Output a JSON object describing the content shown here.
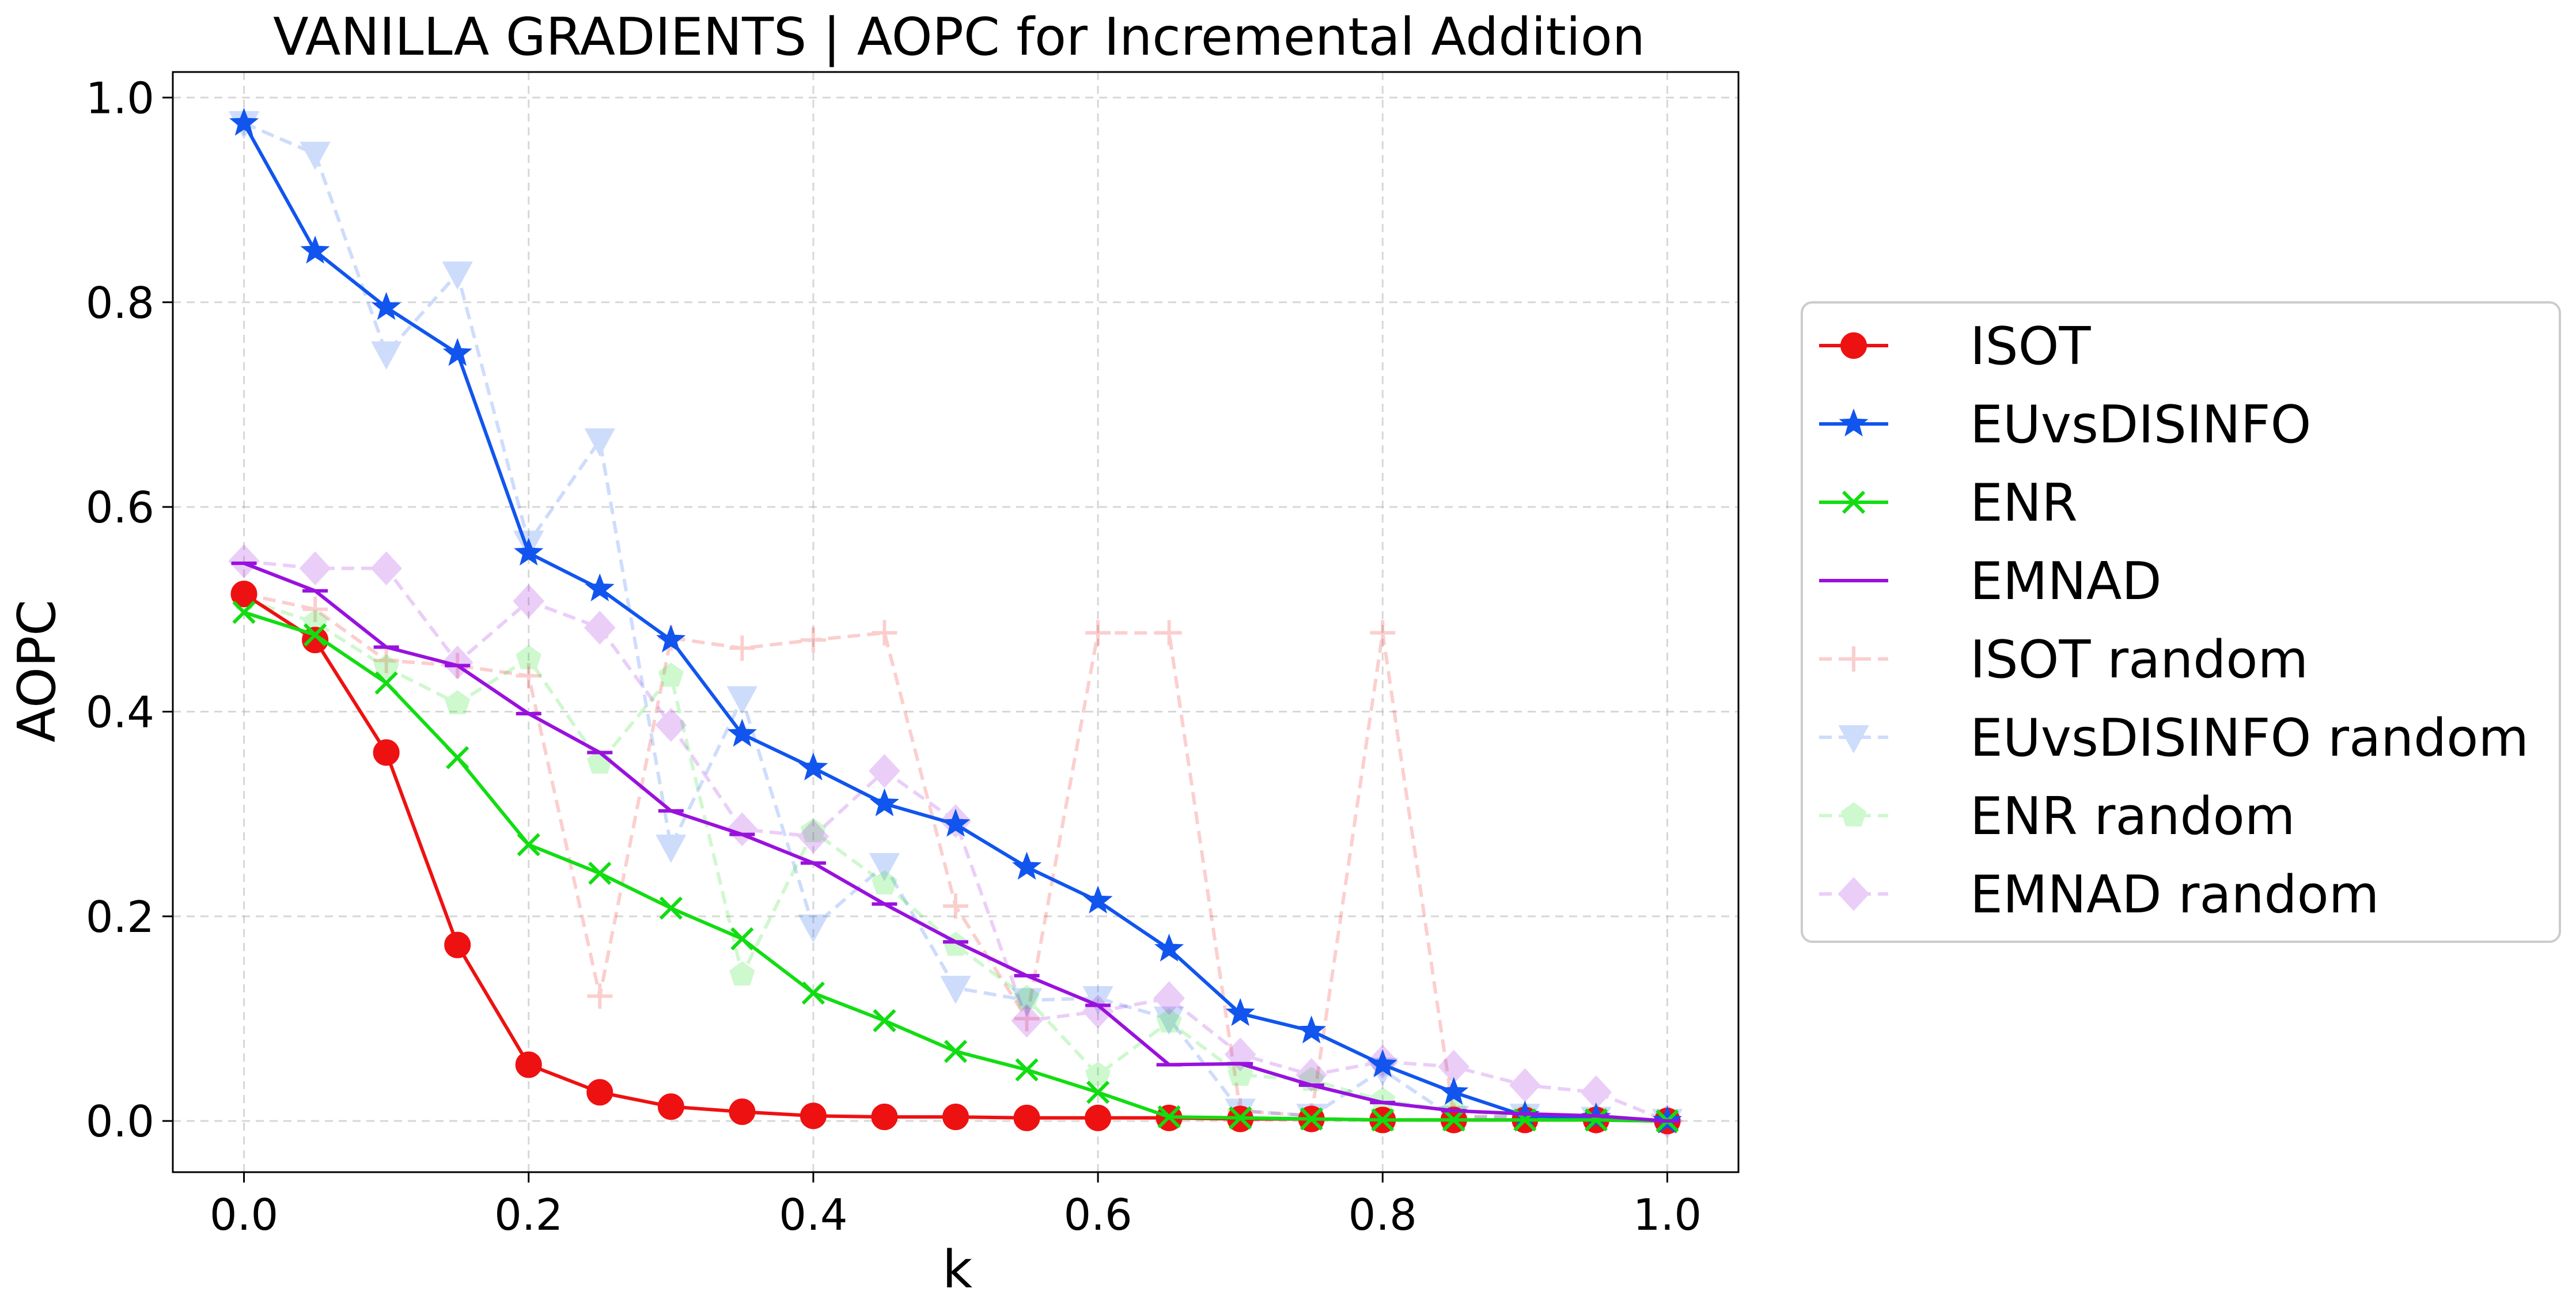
{
  "chart_data": {
    "type": "line",
    "title": "VANILLA GRADIENTS | AOPC for Incremental Addition",
    "xlabel": "k",
    "ylabel": "AOPC",
    "xlim": [
      -0.05,
      1.05
    ],
    "ylim": [
      -0.05,
      1.025
    ],
    "xticks": [
      "0.0",
      "0.2",
      "0.4",
      "0.6",
      "0.8",
      "1.0"
    ],
    "yticks": [
      "0.0",
      "0.2",
      "0.4",
      "0.6",
      "0.8",
      "1.0"
    ],
    "grid": true,
    "legend_position": "right, outside plot",
    "x": [
      0.0,
      0.05,
      0.1,
      0.15,
      0.2,
      0.25,
      0.3,
      0.35,
      0.4,
      0.45,
      0.5,
      0.55,
      0.6,
      0.65,
      0.7,
      0.75,
      0.8,
      0.85,
      0.9,
      0.95,
      1.0
    ],
    "series": [
      {
        "name": "ISOT",
        "color": "#ee1111",
        "marker": "circle",
        "style": "solid",
        "opacity": 1,
        "values": [
          0.515,
          0.47,
          0.36,
          0.172,
          0.055,
          0.028,
          0.014,
          0.009,
          0.005,
          0.004,
          0.004,
          0.003,
          0.003,
          0.003,
          0.002,
          0.002,
          0.001,
          0.001,
          0.001,
          0.001,
          0.0
        ]
      },
      {
        "name": "EUvsDISINFO",
        "color": "#1155ee",
        "marker": "star",
        "style": "solid",
        "opacity": 1,
        "values": [
          0.975,
          0.85,
          0.795,
          0.75,
          0.555,
          0.52,
          0.47,
          0.378,
          0.345,
          0.31,
          0.29,
          0.248,
          0.215,
          0.168,
          0.105,
          0.088,
          0.055,
          0.028,
          0.005,
          0.003,
          0.0
        ]
      },
      {
        "name": "ENR",
        "color": "#11dd11",
        "marker": "x",
        "style": "solid",
        "opacity": 1,
        "values": [
          0.497,
          0.475,
          0.428,
          0.355,
          0.27,
          0.242,
          0.208,
          0.178,
          0.125,
          0.098,
          0.068,
          0.05,
          0.028,
          0.004,
          0.003,
          0.002,
          0.001,
          0.001,
          0.001,
          0.001,
          0.0
        ]
      },
      {
        "name": "EMNAD",
        "color": "#9911dd",
        "marker": "hline",
        "style": "solid",
        "opacity": 1,
        "values": [
          0.545,
          0.518,
          0.463,
          0.445,
          0.398,
          0.36,
          0.303,
          0.28,
          0.252,
          0.212,
          0.175,
          0.142,
          0.113,
          0.055,
          0.056,
          0.035,
          0.018,
          0.01,
          0.007,
          0.005,
          0.0
        ]
      },
      {
        "name": "ISOT random",
        "color": "#ee1111",
        "marker": "plus",
        "style": "dashed",
        "opacity": 0.2,
        "values": [
          0.515,
          0.5,
          0.45,
          0.445,
          0.435,
          0.122,
          0.472,
          0.462,
          0.47,
          0.477,
          0.21,
          0.1,
          0.477,
          0.477,
          0.01,
          0.005,
          0.477,
          0.005,
          0.003,
          0.002,
          0.0
        ]
      },
      {
        "name": "EUvsDISINFO random",
        "color": "#1155ee",
        "marker": "triangle-down",
        "style": "dashed",
        "opacity": 0.2,
        "values": [
          0.975,
          0.945,
          0.75,
          0.828,
          0.565,
          0.665,
          0.268,
          0.413,
          0.19,
          0.25,
          0.13,
          0.118,
          0.12,
          0.1,
          0.01,
          0.005,
          0.05,
          0.003,
          0.005,
          0.002,
          0.0
        ]
      },
      {
        "name": "ENR random",
        "color": "#11dd11",
        "marker": "pentagon",
        "style": "dashed",
        "opacity": 0.2,
        "values": [
          0.51,
          0.487,
          0.443,
          0.408,
          0.452,
          0.35,
          0.435,
          0.143,
          0.283,
          0.232,
          0.172,
          0.12,
          0.045,
          0.097,
          0.045,
          0.04,
          0.02,
          0.01,
          0.005,
          0.003,
          0.0
        ]
      },
      {
        "name": "EMNAD random",
        "color": "#9911dd",
        "marker": "diamond",
        "style": "dashed",
        "opacity": 0.2,
        "values": [
          0.547,
          0.54,
          0.54,
          0.448,
          0.508,
          0.482,
          0.387,
          0.285,
          0.278,
          0.342,
          0.293,
          0.098,
          0.107,
          0.12,
          0.065,
          0.045,
          0.058,
          0.053,
          0.035,
          0.028,
          0.0
        ]
      }
    ]
  }
}
